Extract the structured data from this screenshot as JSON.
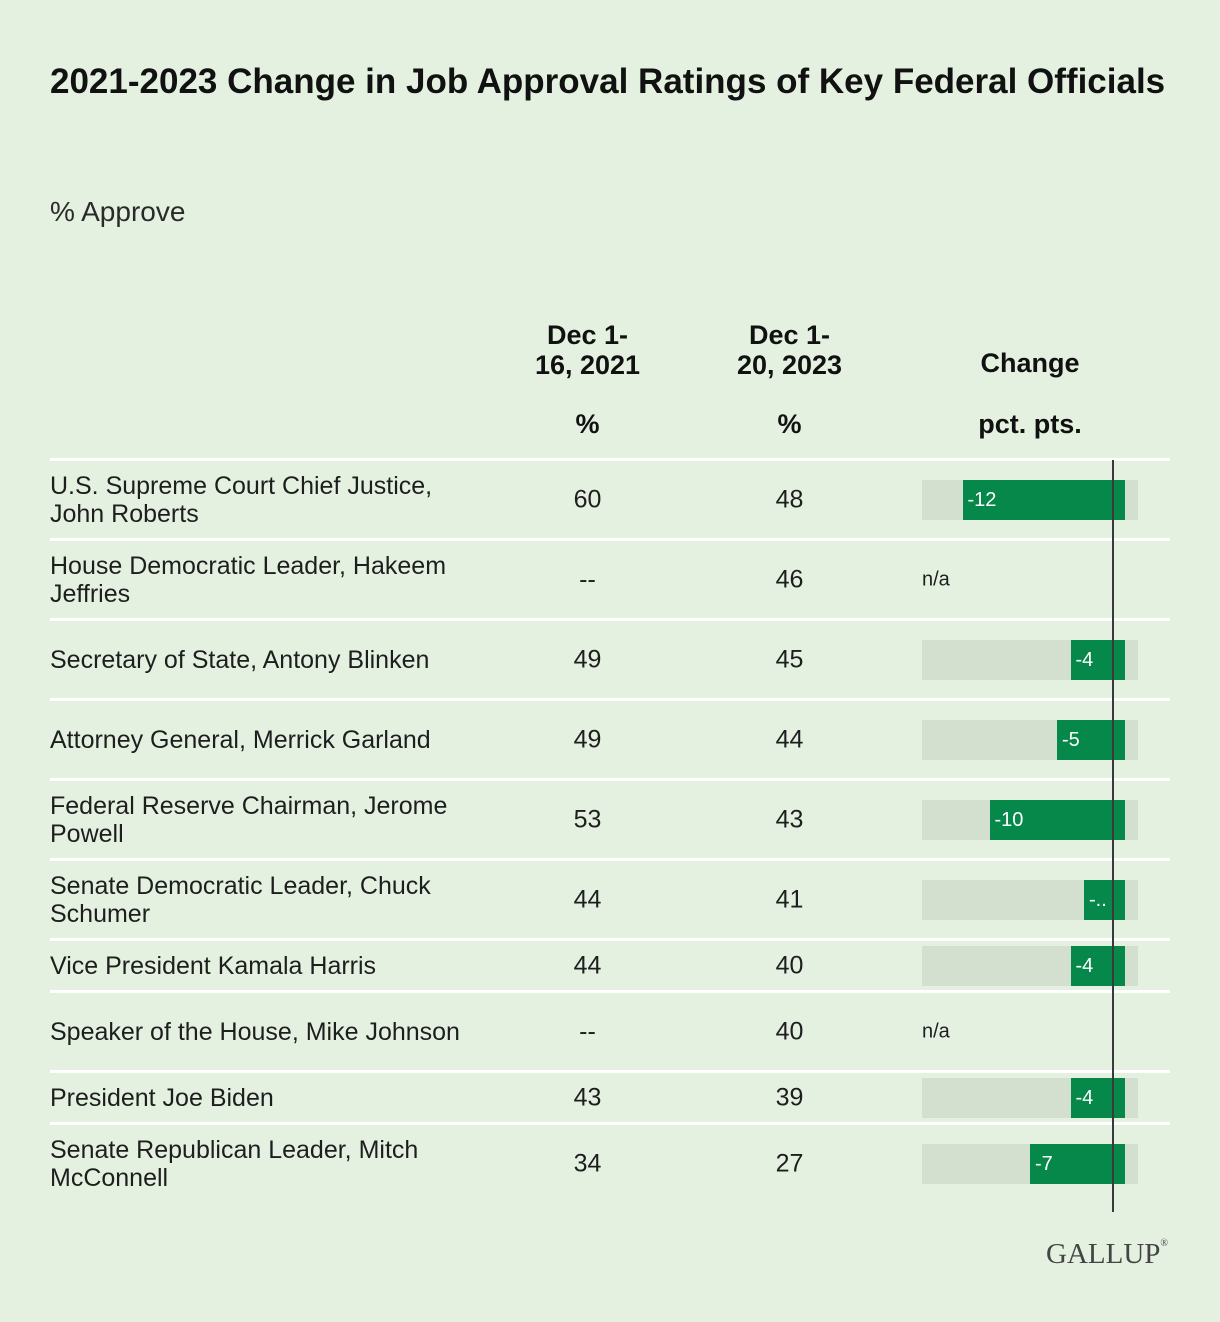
{
  "title": "2021-2023 Change in Job Approval Ratings of Key Federal Officials",
  "subtitle": "% Approve",
  "columns": {
    "col1": "Dec 1-\n16, 2021",
    "col2": "Dec 1-\n20, 2023",
    "col3": "Change",
    "unit1": "%",
    "unit2": "%",
    "unit3": "pct. pts."
  },
  "logo": "GALLUP",
  "colors": {
    "background": "#e4f1e1",
    "bar": "#05884a",
    "track": "#d3e0cf"
  },
  "chart_data": {
    "type": "table",
    "x_range": [
      -15,
      1
    ],
    "rows": [
      {
        "label": "U.S. Supreme Court Chief Justice, John Roberts",
        "v2021": "60",
        "v2023": "48",
        "change": -12,
        "change_label": "-12"
      },
      {
        "label": "House Democratic Leader, Hakeem Jeffries",
        "v2021": "--",
        "v2023": "46",
        "change": null,
        "change_label": "n/a"
      },
      {
        "label": "Secretary of State, Antony Blinken",
        "v2021": "49",
        "v2023": "45",
        "change": -4,
        "change_label": "-4"
      },
      {
        "label": "Attorney General, Merrick Garland",
        "v2021": "49",
        "v2023": "44",
        "change": -5,
        "change_label": "-5"
      },
      {
        "label": "Federal Reserve Chairman, Jerome Powell",
        "v2021": "53",
        "v2023": "43",
        "change": -10,
        "change_label": "-10"
      },
      {
        "label": "Senate Democratic Leader, Chuck Schumer",
        "v2021": "44",
        "v2023": "41",
        "change": -3,
        "change_label": "-.."
      },
      {
        "label": "Vice President Kamala Harris",
        "v2021": "44",
        "v2023": "40",
        "change": -4,
        "change_label": "-4"
      },
      {
        "label": "Speaker of the House, Mike Johnson",
        "v2021": "--",
        "v2023": "40",
        "change": null,
        "change_label": "n/a"
      },
      {
        "label": "President Joe Biden",
        "v2021": "43",
        "v2023": "39",
        "change": -4,
        "change_label": "-4"
      },
      {
        "label": "Senate Republican Leader, Mitch McConnell",
        "v2021": "34",
        "v2023": "27",
        "change": -7,
        "change_label": "-7"
      }
    ]
  }
}
